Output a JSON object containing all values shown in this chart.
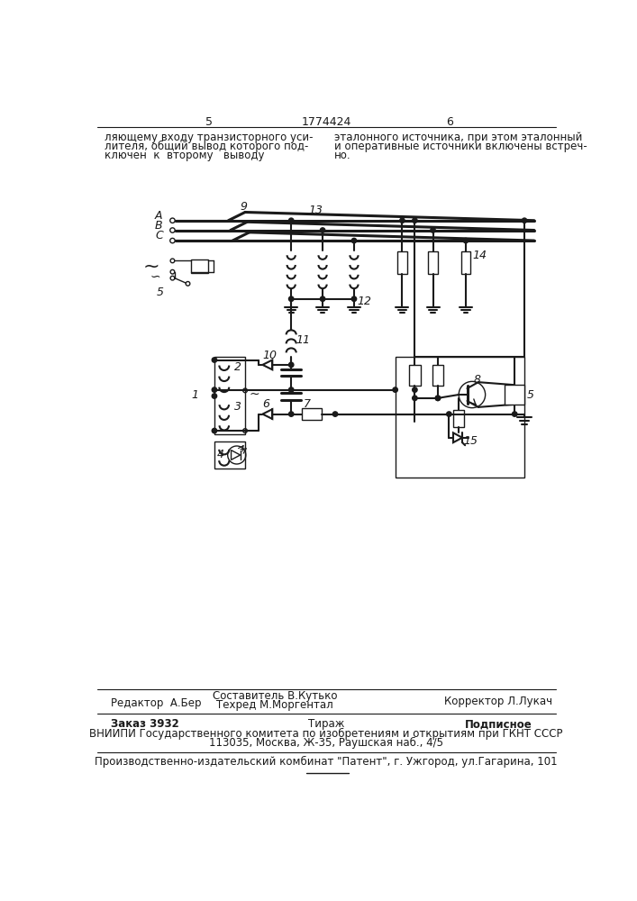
{
  "page_numbers_left": "5",
  "page_numbers_center": "1774424",
  "page_numbers_right": "6",
  "top_text_left_lines": [
    "ляющему входу транзисторного уси-",
    "лителя, общий вывод которого под-",
    "ключен  к  второму   выводу"
  ],
  "top_text_right_lines": [
    "эталонного источника, при этом эталонный",
    "и оперативные источники включены встреч-",
    "но."
  ],
  "footer_line1_left": "Редактор  А.Бер",
  "footer_line1_center1": "Составитель В.Кутько",
  "footer_line1_center2": "Техред М.Моргентал",
  "footer_line1_right": "Корректор Л.Лукач",
  "footer_line2_left": "Заказ 3932",
  "footer_line2_center": "Тираж",
  "footer_line2_right": "Подписное",
  "footer_line3": "ВНИИПИ Государственного комитета по изобретениям и открытиям при ГКНТ СССР",
  "footer_line4": "113035, Москва, Ж-35, Раушская наб., 4/5",
  "footer_line5": "Производственно-издательский комбинат \"Патент\", г. Ужгород, ул.Гагарина, 101",
  "bg_color": "#ffffff",
  "line_color": "#1a1a1a"
}
